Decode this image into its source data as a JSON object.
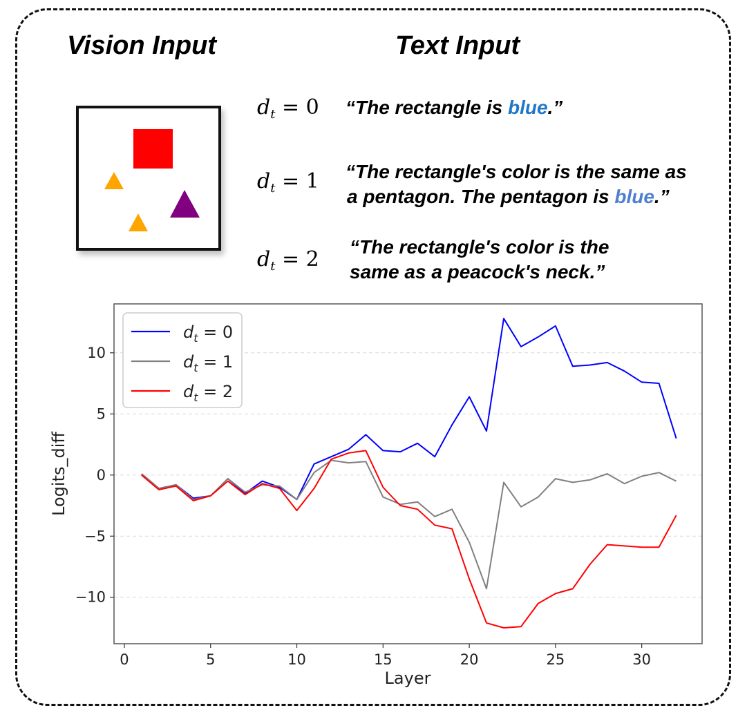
{
  "headings": {
    "vision": "Vision Input",
    "text": "Text Input"
  },
  "equations": [
    {
      "var": "d",
      "sub": "t",
      "op": " = ",
      "val": "0"
    },
    {
      "var": "d",
      "sub": "t",
      "op": " = ",
      "val": "1"
    },
    {
      "var": "d",
      "sub": "t",
      "op": " = ",
      "val": "2"
    }
  ],
  "quotes": {
    "q0": {
      "pre": "“The rectangle is ",
      "blue": "blue",
      "post": ".”"
    },
    "q1": {
      "line1": "“The rectangle's color is the same as",
      "line2pre": "a pentagon. The pentagon is  ",
      "blue": "blue",
      "post": ".”"
    },
    "q2": {
      "line1": "“The rectangle's color is the",
      "line2": "same as a peacock's neck.”"
    }
  },
  "colors": {
    "blue_word_1": "#1f77c9",
    "blue_word_2": "#4f7fd0",
    "square": "#ff0000",
    "triangle_orange": "#ffa500",
    "triangle_purple": "#800080"
  },
  "chart_data": {
    "type": "line",
    "xlabel": "Layer",
    "ylabel": "Logits_diff",
    "xlim": [
      -0.6,
      33.5
    ],
    "ylim": [
      -13.8,
      14.0
    ],
    "xticks": [
      0,
      5,
      10,
      15,
      20,
      25,
      30
    ],
    "yticks": [
      -10,
      -5,
      0,
      5,
      10
    ],
    "ytick_labels": [
      "−10",
      "−5",
      "0",
      "5",
      "10"
    ],
    "grid": "horizontal dashed",
    "legend_position": "top-left",
    "x": [
      1,
      2,
      3,
      4,
      5,
      6,
      7,
      8,
      9,
      10,
      11,
      12,
      13,
      14,
      15,
      16,
      17,
      18,
      19,
      20,
      21,
      22,
      23,
      24,
      25,
      26,
      27,
      28,
      29,
      30,
      31,
      32
    ],
    "series": [
      {
        "name": "d_t = 0",
        "legend": {
          "var": "d",
          "sub": "t",
          "rest": " = 0"
        },
        "color": "#0000ff",
        "values": [
          0.1,
          -1.1,
          -0.8,
          -1.9,
          -1.7,
          -0.3,
          -1.5,
          -0.5,
          -1.0,
          -2.0,
          0.9,
          1.5,
          2.1,
          3.3,
          2.0,
          1.9,
          2.6,
          1.5,
          4.1,
          6.4,
          3.6,
          12.8,
          10.5,
          11.3,
          12.2,
          8.9,
          9.0,
          9.2,
          8.5,
          7.6,
          7.5,
          3.0
        ]
      },
      {
        "name": "d_t = 1",
        "legend": {
          "var": "d",
          "sub": "t",
          "rest": " = 1"
        },
        "color": "#808080",
        "values": [
          0.1,
          -1.1,
          -0.8,
          -2.0,
          -1.7,
          -0.3,
          -1.4,
          -0.8,
          -0.9,
          -2.0,
          0.2,
          1.2,
          1.0,
          1.1,
          -1.8,
          -2.4,
          -2.2,
          -3.4,
          -2.8,
          -5.5,
          -9.3,
          -0.6,
          -2.6,
          -1.8,
          -0.3,
          -0.6,
          -0.4,
          0.1,
          -0.7,
          -0.1,
          0.2,
          -0.5
        ]
      },
      {
        "name": "d_t = 2",
        "legend": {
          "var": "d",
          "sub": "t",
          "rest": " = 2"
        },
        "color": "#ff0000",
        "values": [
          0.0,
          -1.2,
          -0.9,
          -2.1,
          -1.7,
          -0.5,
          -1.6,
          -0.7,
          -1.1,
          -2.9,
          -1.1,
          1.3,
          1.8,
          2.0,
          -1.0,
          -2.5,
          -2.8,
          -4.1,
          -4.4,
          -8.5,
          -12.1,
          -12.5,
          -12.4,
          -10.5,
          -9.7,
          -9.3,
          -7.3,
          -5.7,
          -5.8,
          -5.9,
          -5.9,
          -3.3
        ]
      }
    ]
  }
}
